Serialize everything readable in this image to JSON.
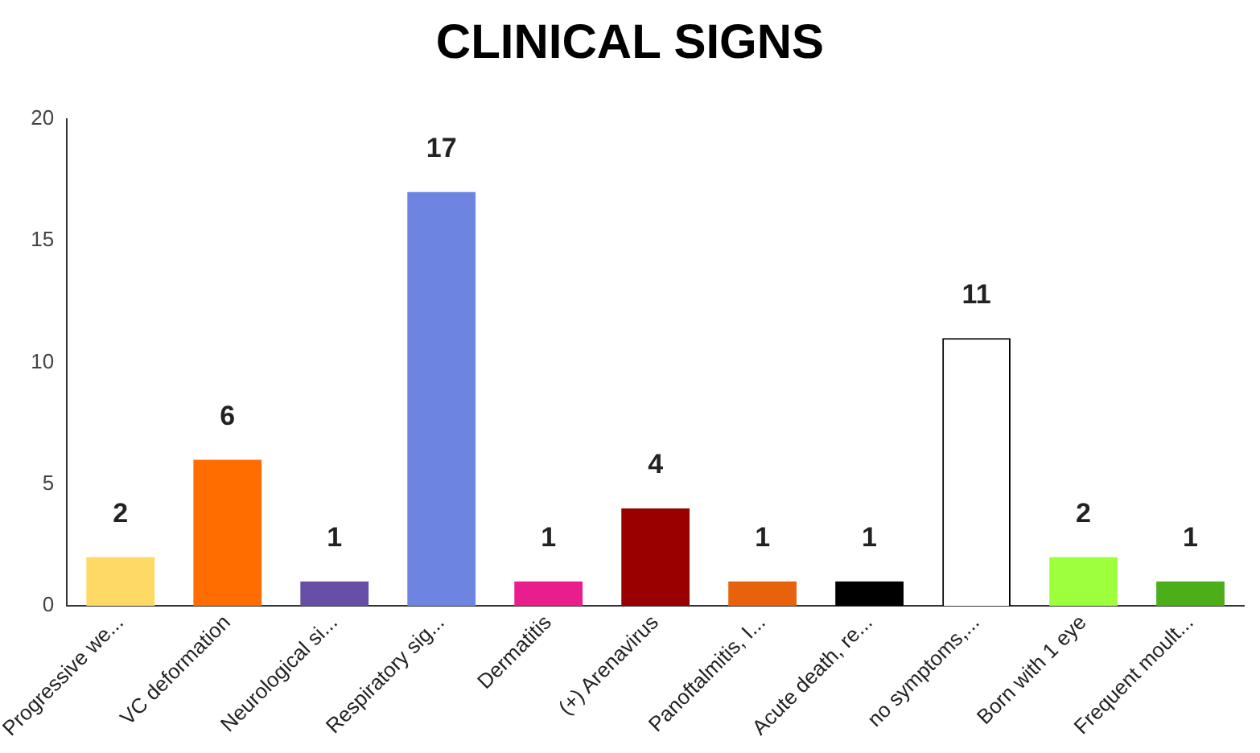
{
  "chart_data": {
    "type": "bar",
    "title": "CLINICAL SIGNS",
    "categories": [
      "Progressive we...",
      "VC deformation",
      "Neurological si...",
      "Respiratory sig...",
      "Dermatitis",
      "(+) Arenavirus",
      "Panoftalmitis, I...",
      "Acute death, re...",
      "no symptoms,...",
      "Born with 1 eye",
      "Frequent moult..."
    ],
    "values": [
      2,
      6,
      1,
      17,
      1,
      4,
      1,
      1,
      11,
      2,
      1
    ],
    "colors": [
      "#ffd966",
      "#ff6d01",
      "#674ea7",
      "#6d84e0",
      "#e91e8c",
      "#990000",
      "#e8620c",
      "#000000",
      "#ffffff",
      "#9eff3c",
      "#4caf1a"
    ],
    "ylim": [
      0,
      20
    ],
    "yticks": [
      0,
      5,
      10,
      15,
      20
    ],
    "grid": false,
    "legend": false,
    "data_labels": true
  }
}
